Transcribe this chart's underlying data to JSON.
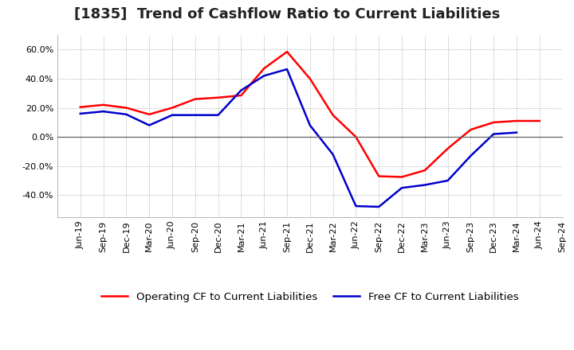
{
  "title": "[1835]  Trend of Cashflow Ratio to Current Liabilities",
  "x_labels": [
    "Jun-19",
    "Sep-19",
    "Dec-19",
    "Mar-20",
    "Jun-20",
    "Sep-20",
    "Dec-20",
    "Mar-21",
    "Jun-21",
    "Sep-21",
    "Dec-21",
    "Mar-22",
    "Jun-22",
    "Sep-22",
    "Dec-22",
    "Mar-23",
    "Jun-23",
    "Sep-23",
    "Dec-23",
    "Mar-24",
    "Jun-24",
    "Sep-24"
  ],
  "operating_cf": [
    20.5,
    22.0,
    20.0,
    15.5,
    20.0,
    26.0,
    27.0,
    28.5,
    47.0,
    58.5,
    40.0,
    15.0,
    0.0,
    -27.0,
    -27.5,
    -23.0,
    -8.0,
    5.0,
    10.0,
    11.0,
    11.0
  ],
  "free_cf": [
    16.0,
    17.5,
    15.5,
    8.0,
    15.0,
    15.0,
    15.0,
    32.0,
    42.0,
    46.5,
    8.0,
    -12.0,
    -47.5,
    -48.0,
    -35.0,
    -33.0,
    -30.0,
    -13.0,
    2.0,
    3.0
  ],
  "operating_cf_x": [
    0,
    1,
    2,
    3,
    4,
    5,
    6,
    7,
    8,
    9,
    10,
    11,
    12,
    13,
    14,
    15,
    16,
    17,
    18,
    19,
    20
  ],
  "free_cf_x": [
    0,
    1,
    2,
    3,
    4,
    5,
    6,
    7,
    8,
    9,
    10,
    11,
    12,
    13,
    14,
    15,
    16,
    17,
    18,
    19
  ],
  "ylim": [
    -55.0,
    70.0
  ],
  "yticks": [
    -40.0,
    -20.0,
    0.0,
    20.0,
    40.0,
    60.0
  ],
  "operating_color": "#ff0000",
  "free_color": "#0000cc",
  "legend_operating": "Operating CF to Current Liabilities",
  "legend_free": "Free CF to Current Liabilities",
  "bg_color": "#ffffff",
  "plot_bg_color": "#ffffff",
  "grid_color": "#999999",
  "zero_line_color": "#666666",
  "title_fontsize": 13,
  "axis_fontsize": 8,
  "legend_fontsize": 9.5
}
